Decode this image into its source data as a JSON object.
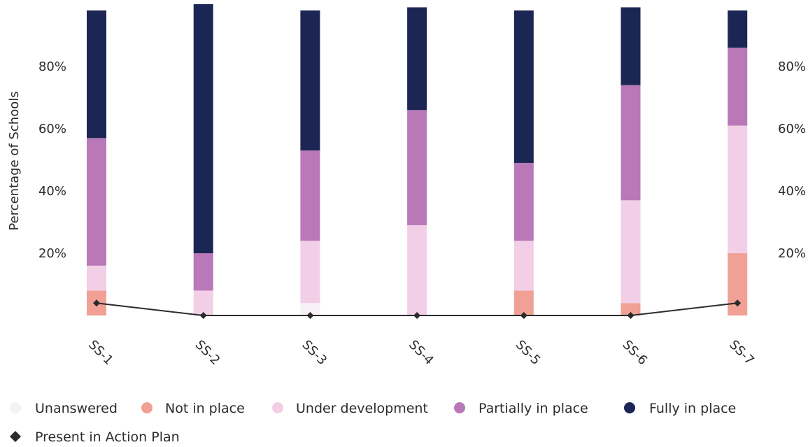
{
  "chart_data": {
    "type": "bar",
    "stacked": true,
    "categories": [
      "SS-1",
      "SS-2",
      "SS-3",
      "SS-4",
      "SS-5",
      "SS-6",
      "SS-7"
    ],
    "series": [
      {
        "name": "Unanswered",
        "color": "#f7f0f5",
        "values": [
          0,
          0,
          4,
          0,
          0,
          0,
          0
        ]
      },
      {
        "name": "Not in place",
        "color": "#f0a095",
        "values": [
          8,
          0,
          0,
          0,
          8,
          4,
          20
        ]
      },
      {
        "name": "Under development",
        "color": "#f2cfe6",
        "values": [
          8,
          8,
          20,
          29,
          16,
          33,
          41
        ]
      },
      {
        "name": "Partially in place",
        "color": "#b978b8",
        "values": [
          41,
          12,
          29,
          37,
          25,
          37,
          25
        ]
      },
      {
        "name": "Fully in place",
        "color": "#1b2654",
        "values": [
          41,
          80,
          45,
          33,
          49,
          25,
          12
        ]
      }
    ],
    "line_series": {
      "name": "Present in Action Plan",
      "color": "#2b2b2b",
      "marker": "diamond",
      "values": [
        4,
        0,
        0,
        0,
        0,
        0,
        4
      ]
    },
    "ylabel": "Percentage of Schools",
    "ylim": [
      0,
      100
    ],
    "yticks": [
      20,
      40,
      60,
      80
    ],
    "ytick_labels": [
      "20%",
      "40%",
      "60%",
      "80%"
    ],
    "right_axis": true,
    "grid": false,
    "legend_position": "bottom-left"
  }
}
